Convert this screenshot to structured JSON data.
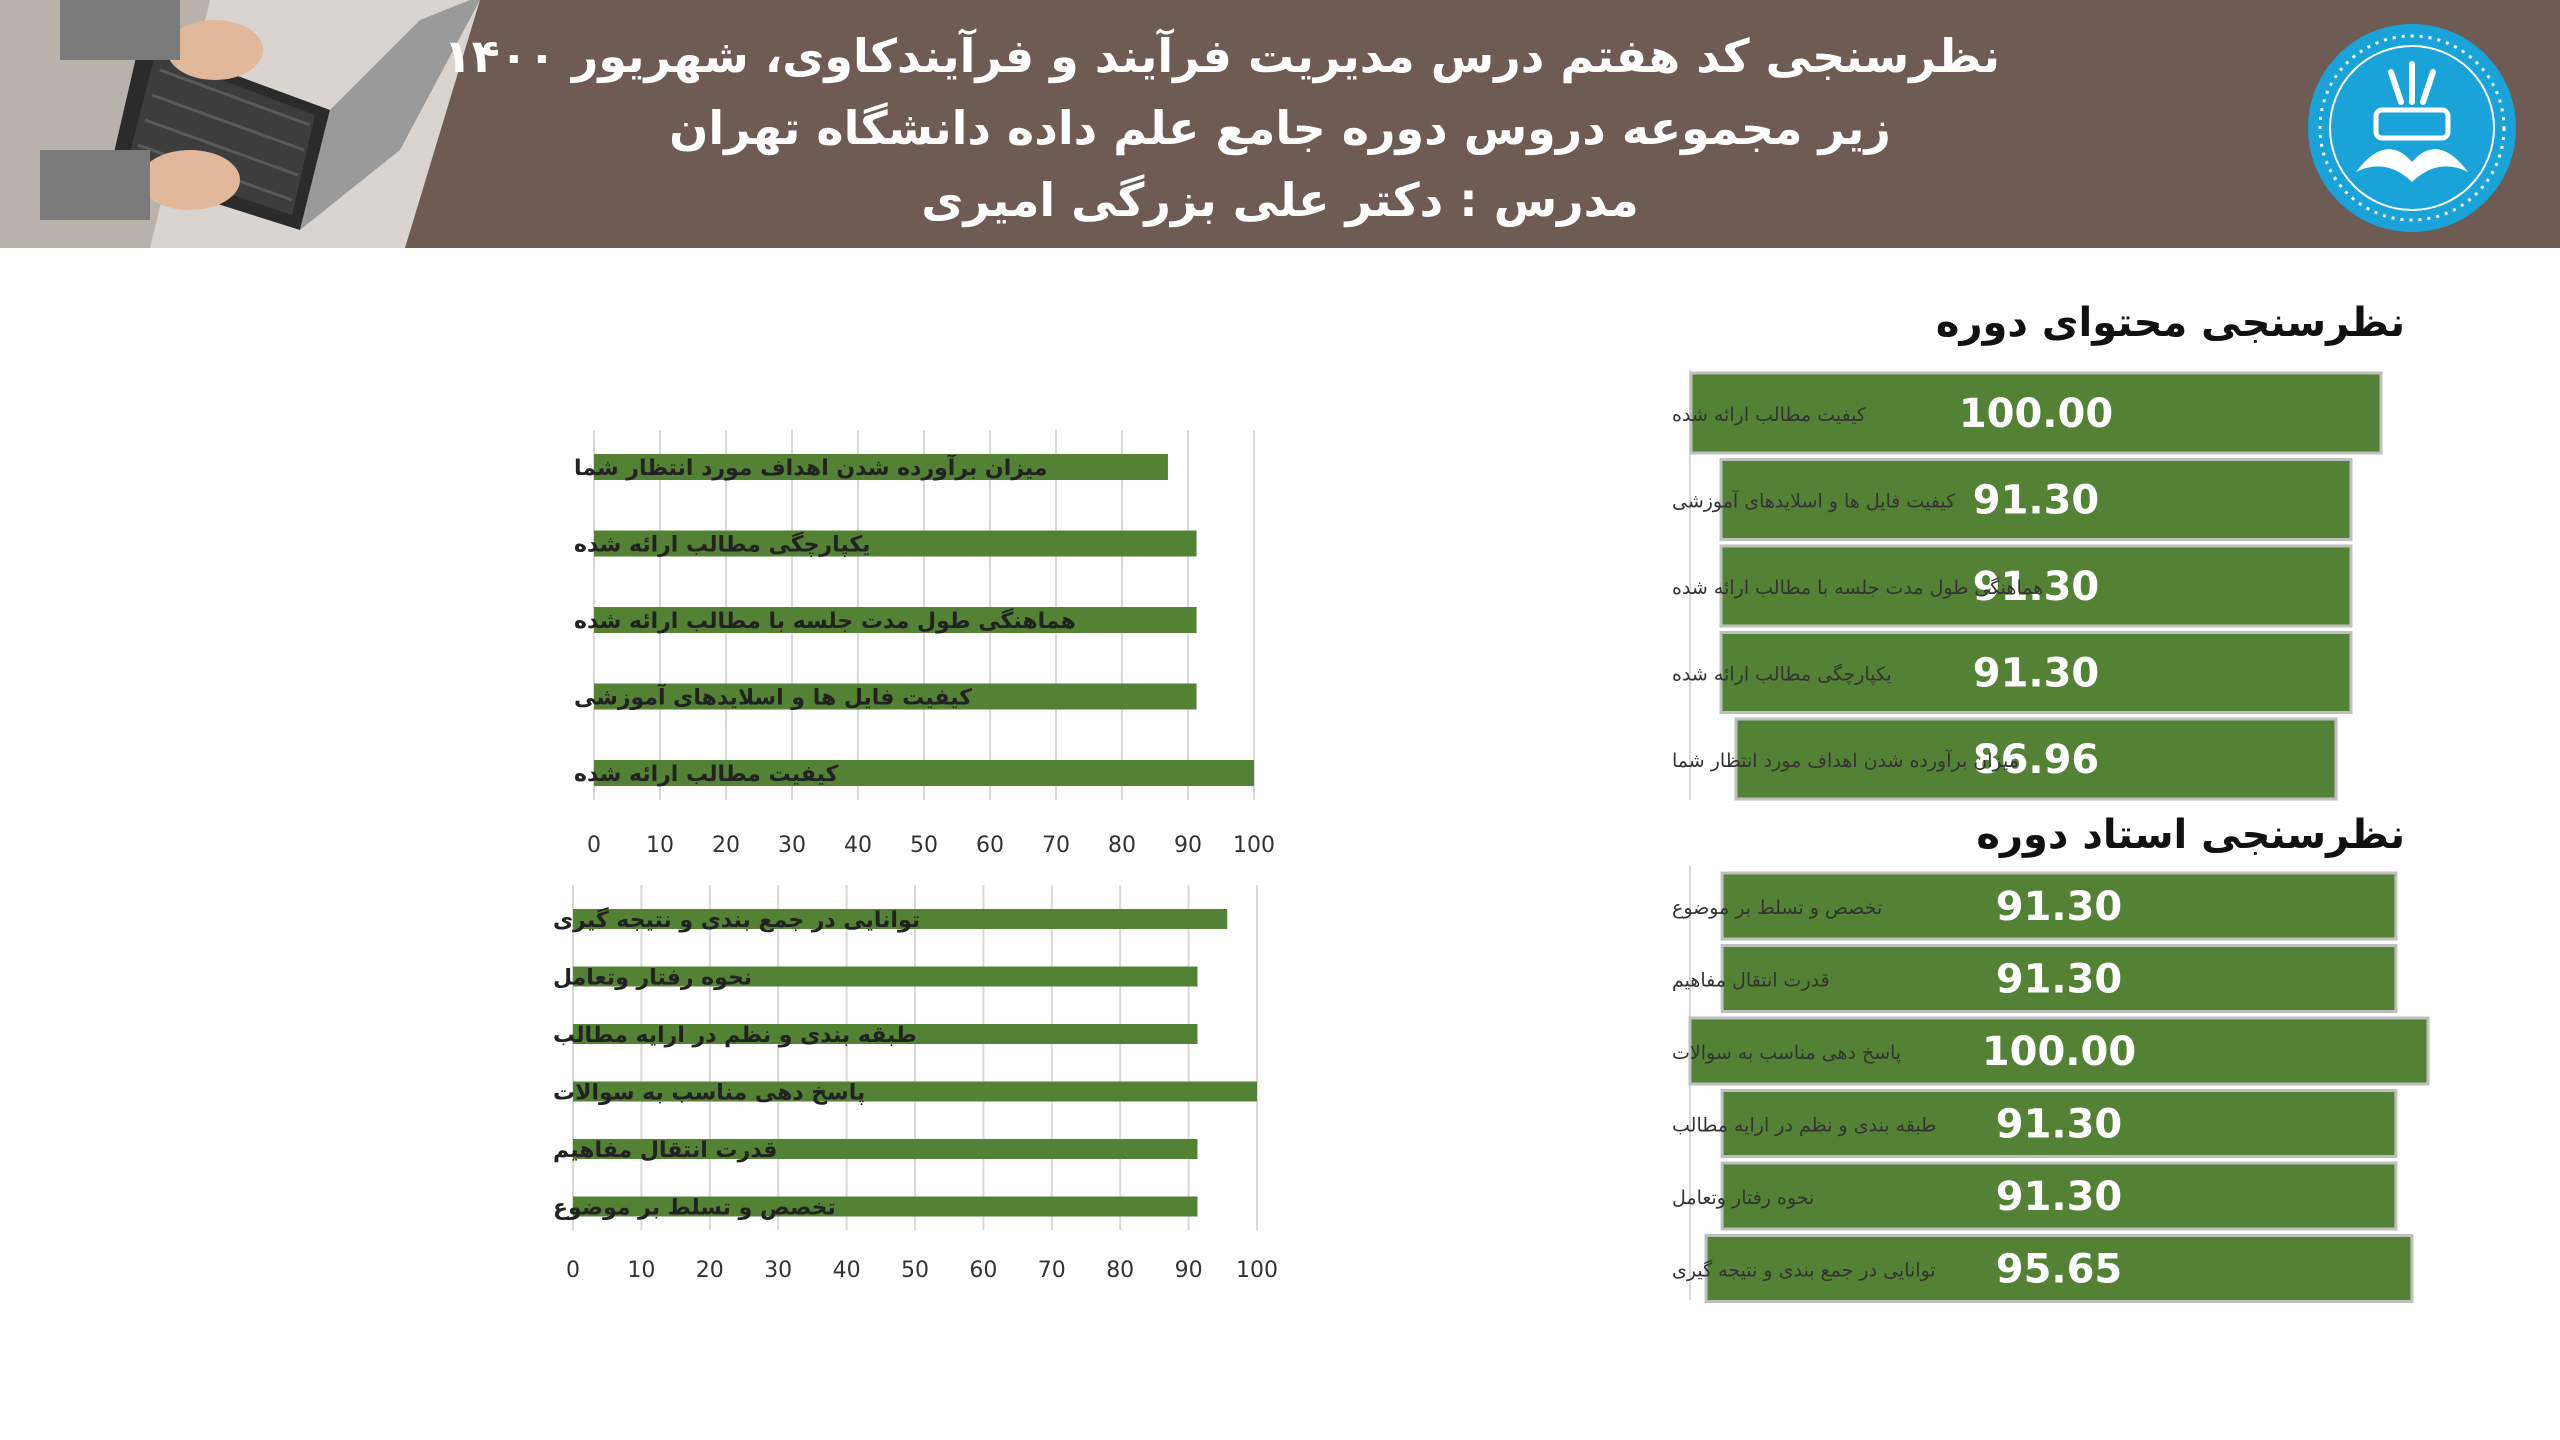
{
  "header": {
    "title_line1": "نظرسنجی کد هفتم درس مدیریت فرآیند و فرآیندکاوی، شهریور ۱۴۰۰",
    "title_line2": "زیر مجموعه دروس دوره جامع علم داده دانشگاه تهران",
    "title_line3": "مدرس : دکتر علی بزرگی امیری",
    "background_color": "#6e5c54",
    "logo_icon": "university-of-tehran-logo",
    "logo_color": "#1aa3d9",
    "photo_icon": "laptop-typing-photo"
  },
  "colors": {
    "bar_green": "#548235",
    "bar_outline": "#bfbfbf",
    "grid": "#d9d9d9"
  },
  "content_section": {
    "title": "نظرسنجی محتوای دوره"
  },
  "instructor_section": {
    "title": "نظرسنجی استاد دوره"
  },
  "chart_data": [
    {
      "type": "bar",
      "orientation": "horizontal",
      "categories": [
        "میزان برآورده شدن اهداف مورد انتظار شما",
        "یکپارچگی مطالب ارائه شده",
        "هماهنگی طول مدت جلسه با مطالب ارائه شده",
        "کیفیت فایل ها و اسلایدهای آموزشی",
        "کیفیت مطالب ارائه شده"
      ],
      "values": [
        86.96,
        91.3,
        91.3,
        91.3,
        100.0
      ],
      "xlim": [
        0,
        100
      ],
      "xticks": [
        "0",
        "10",
        "20",
        "30",
        "40",
        "50",
        "60",
        "70",
        "80",
        "90",
        "100"
      ],
      "grid": true
    },
    {
      "type": "bar",
      "orientation": "horizontal",
      "categories": [
        "توانایی در جمع بندی و نتیجه گیری",
        "نحوه رفتار وتعامل",
        "طبقه بندی و نظم در ارایه مطالب",
        "پاسخ دهی مناسب به سوالات",
        "قدرت انتقال مفاهیم",
        "تخصص و تسلط بر موضوع"
      ],
      "values": [
        95.65,
        91.3,
        91.3,
        100.0,
        91.3,
        91.3
      ],
      "xlim": [
        0,
        100
      ],
      "xticks": [
        "0",
        "10",
        "20",
        "30",
        "40",
        "50",
        "60",
        "70",
        "80",
        "90",
        "100"
      ],
      "grid": true
    },
    {
      "type": "bar",
      "orientation": "horizontal",
      "data_labels": true,
      "categories": [
        "کیفیت مطالب ارائه شده",
        "کیفیت فایل ها و اسلایدهای آموزشی",
        "هماهنگی طول مدت جلسه با مطالب ارائه شده",
        "یکپارچگی مطالب ارائه شده",
        "میزان برآورده شدن اهداف مورد انتظار شما"
      ],
      "values": [
        100.0,
        91.3,
        91.3,
        91.3,
        86.96
      ],
      "value_labels": [
        "100.00",
        "91.30",
        "91.30",
        "91.30",
        "86.96"
      ]
    },
    {
      "type": "bar",
      "orientation": "horizontal",
      "data_labels": true,
      "categories": [
        "تخصص و تسلط بر موضوع",
        "قدرت انتقال مفاهیم",
        "پاسخ دهی مناسب به سوالات",
        "طبقه بندی و نظم در ارایه مطالب",
        "نحوه رفتار وتعامل",
        "توانایی در جمع بندی و نتیجه گیری"
      ],
      "values": [
        91.3,
        91.3,
        100.0,
        91.3,
        91.3,
        95.65
      ],
      "value_labels": [
        "91.30",
        "91.30",
        "100.00",
        "91.30",
        "91.30",
        "95.65"
      ]
    }
  ]
}
